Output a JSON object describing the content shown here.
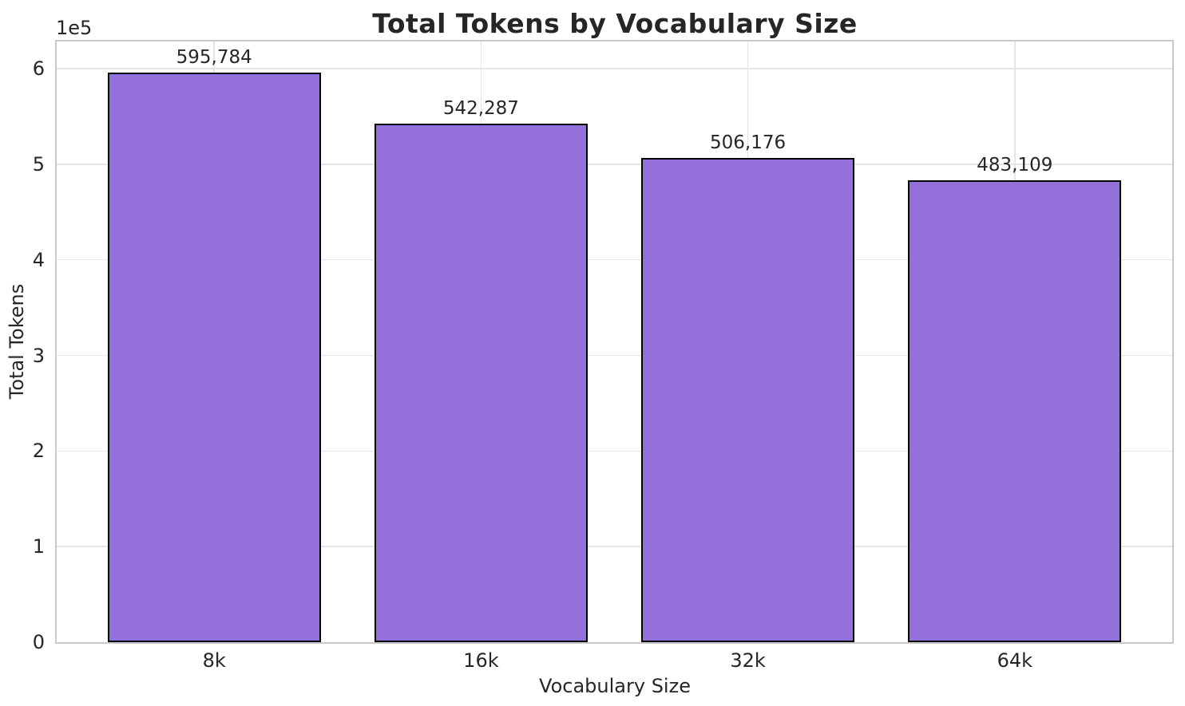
{
  "chart_data": {
    "type": "bar",
    "title": "Total Tokens by Vocabulary Size",
    "xlabel": "Vocabulary Size",
    "ylabel": "Total Tokens",
    "y_scale_offset_label": "1e5",
    "categories": [
      "8k",
      "16k",
      "32k",
      "64k"
    ],
    "values": [
      595784,
      542287,
      506176,
      483109
    ],
    "value_labels": [
      "595,784",
      "542,287",
      "506,176",
      "483,109"
    ],
    "ylim": [
      0,
      628400
    ],
    "y_ticks": [
      0,
      100000,
      200000,
      300000,
      400000,
      500000,
      600000
    ],
    "y_tick_labels": [
      "0",
      "1",
      "2",
      "3",
      "4",
      "5",
      "6"
    ],
    "grid": true,
    "legend_position": "none",
    "colors": {
      "bar_fill": "#9370DB",
      "bar_edge": "#000000",
      "grid_line": "#e5e5e5",
      "spine": "#c9c9c9",
      "text": "#262626",
      "background": "#ffffff"
    }
  }
}
